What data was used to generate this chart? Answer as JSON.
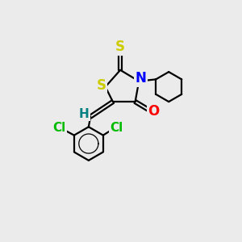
{
  "background_color": "#ebebeb",
  "atom_colors": {
    "S": "#cccc00",
    "N": "#0000ff",
    "O": "#ff0000",
    "Cl": "#00bb00",
    "C": "#000000",
    "H": "#008080"
  },
  "figsize": [
    3.0,
    3.0
  ],
  "dpi": 100,
  "lw": 1.6,
  "font_size": 11
}
